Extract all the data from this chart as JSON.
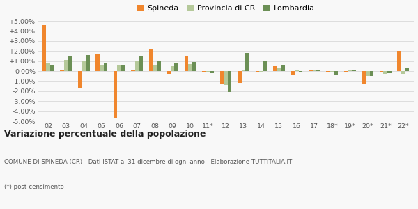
{
  "categories": [
    "02",
    "03",
    "04",
    "05",
    "06",
    "07",
    "08",
    "09",
    "10",
    "11*",
    "12",
    "13",
    "14",
    "15",
    "16",
    "17",
    "18*",
    "19*",
    "20*",
    "21*",
    "22*"
  ],
  "spineda": [
    4.6,
    0.1,
    -1.7,
    1.7,
    -4.7,
    0.15,
    2.25,
    -0.3,
    1.5,
    -0.05,
    -1.35,
    -1.15,
    -0.1,
    0.5,
    -0.35,
    0.1,
    -0.05,
    -0.1,
    -1.3,
    -0.05,
    2.0
  ],
  "provincia": [
    0.75,
    1.1,
    0.95,
    0.65,
    0.6,
    0.95,
    0.55,
    0.5,
    0.7,
    -0.15,
    -1.4,
    0.15,
    -0.15,
    0.25,
    0.1,
    0.1,
    -0.1,
    0.1,
    -0.5,
    -0.3,
    -0.3
  ],
  "lombardia": [
    0.6,
    1.5,
    1.6,
    0.85,
    0.55,
    1.55,
    1.0,
    0.75,
    0.9,
    -0.2,
    -2.1,
    1.8,
    1.0,
    0.6,
    -0.1,
    0.05,
    -0.4,
    0.1,
    -0.5,
    -0.2,
    0.25
  ],
  "spineda_color": "#f0862d",
  "provincia_color": "#b5c99a",
  "lombardia_color": "#6b8f55",
  "bg_color": "#f8f8f8",
  "grid_color": "#d8d8d8",
  "ylim": [
    -5.0,
    5.0
  ],
  "yticks": [
    -5.0,
    -4.0,
    -3.0,
    -2.0,
    -1.0,
    0.0,
    1.0,
    2.0,
    3.0,
    4.0,
    5.0
  ],
  "legend_labels": [
    "Spineda",
    "Provincia di CR",
    "Lombardia"
  ],
  "title": "Variazione percentuale della popolazione",
  "footnote1": "COMUNE DI SPINEDA (CR) - Dati ISTAT al 31 dicembre di ogni anno - Elaborazione TUTTITALIA.IT",
  "footnote2": "(*) post-censimento",
  "bar_width": 0.22,
  "legend_fontsize": 8.0,
  "tick_fontsize": 6.8,
  "title_fontsize": 9.0,
  "footnote_fontsize": 6.2
}
